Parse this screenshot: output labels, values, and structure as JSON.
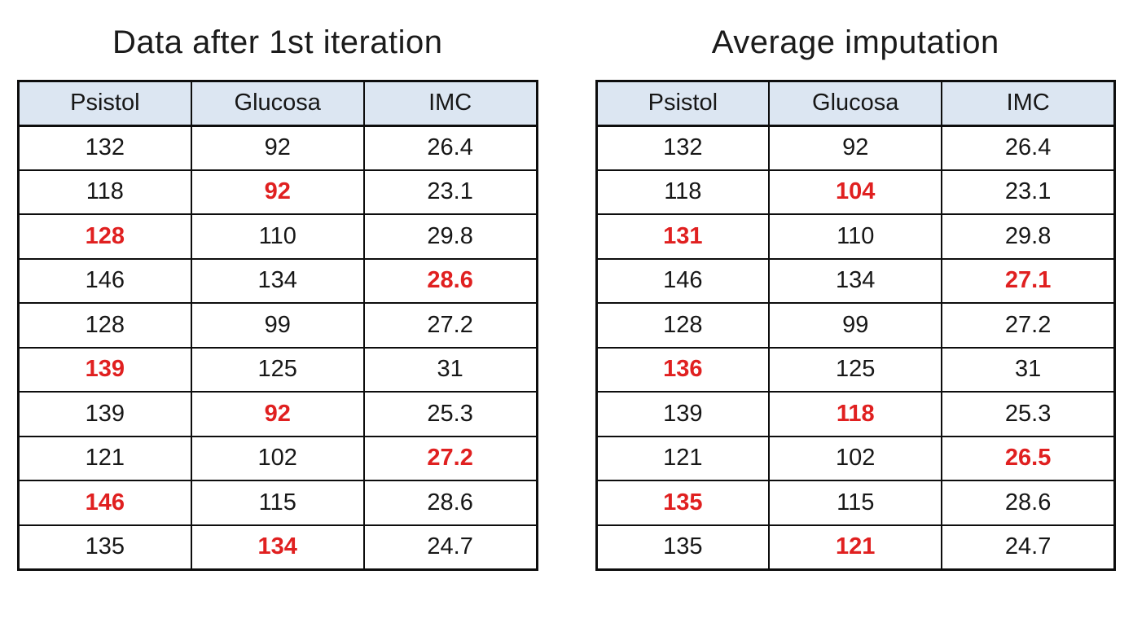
{
  "colors": {
    "header_bg": "#dce6f2",
    "imputed": "#e02020",
    "border": "#0d0d0d",
    "text": "#171717",
    "page_bg": "#ffffff"
  },
  "tables": [
    {
      "title": "Data after 1st iteration",
      "columns": [
        "Psistol",
        "Glucosa",
        "IMC"
      ],
      "rows": [
        [
          {
            "v": "132",
            "red": false
          },
          {
            "v": "92",
            "red": false
          },
          {
            "v": "26.4",
            "red": false
          }
        ],
        [
          {
            "v": "118",
            "red": false
          },
          {
            "v": "92",
            "red": true
          },
          {
            "v": "23.1",
            "red": false
          }
        ],
        [
          {
            "v": "128",
            "red": true
          },
          {
            "v": "110",
            "red": false
          },
          {
            "v": "29.8",
            "red": false
          }
        ],
        [
          {
            "v": "146",
            "red": false
          },
          {
            "v": "134",
            "red": false
          },
          {
            "v": "28.6",
            "red": true
          }
        ],
        [
          {
            "v": "128",
            "red": false
          },
          {
            "v": "99",
            "red": false
          },
          {
            "v": "27.2",
            "red": false
          }
        ],
        [
          {
            "v": "139",
            "red": true
          },
          {
            "v": "125",
            "red": false
          },
          {
            "v": "31",
            "red": false
          }
        ],
        [
          {
            "v": "139",
            "red": false
          },
          {
            "v": "92",
            "red": true
          },
          {
            "v": "25.3",
            "red": false
          }
        ],
        [
          {
            "v": "121",
            "red": false
          },
          {
            "v": "102",
            "red": false
          },
          {
            "v": "27.2",
            "red": true
          }
        ],
        [
          {
            "v": "146",
            "red": true
          },
          {
            "v": "115",
            "red": false
          },
          {
            "v": "28.6",
            "red": false
          }
        ],
        [
          {
            "v": "135",
            "red": false
          },
          {
            "v": "134",
            "red": true
          },
          {
            "v": "24.7",
            "red": false
          }
        ]
      ]
    },
    {
      "title": "Average imputation",
      "columns": [
        "Psistol",
        "Glucosa",
        "IMC"
      ],
      "rows": [
        [
          {
            "v": "132",
            "red": false
          },
          {
            "v": "92",
            "red": false
          },
          {
            "v": "26.4",
            "red": false
          }
        ],
        [
          {
            "v": "118",
            "red": false
          },
          {
            "v": "104",
            "red": true
          },
          {
            "v": "23.1",
            "red": false
          }
        ],
        [
          {
            "v": "131",
            "red": true
          },
          {
            "v": "110",
            "red": false
          },
          {
            "v": "29.8",
            "red": false
          }
        ],
        [
          {
            "v": "146",
            "red": false
          },
          {
            "v": "134",
            "red": false
          },
          {
            "v": "27.1",
            "red": true
          }
        ],
        [
          {
            "v": "128",
            "red": false
          },
          {
            "v": "99",
            "red": false
          },
          {
            "v": "27.2",
            "red": false
          }
        ],
        [
          {
            "v": "136",
            "red": true
          },
          {
            "v": "125",
            "red": false
          },
          {
            "v": "31",
            "red": false
          }
        ],
        [
          {
            "v": "139",
            "red": false
          },
          {
            "v": "118",
            "red": true
          },
          {
            "v": "25.3",
            "red": false
          }
        ],
        [
          {
            "v": "121",
            "red": false
          },
          {
            "v": "102",
            "red": false
          },
          {
            "v": "26.5",
            "red": true
          }
        ],
        [
          {
            "v": "135",
            "red": true
          },
          {
            "v": "115",
            "red": false
          },
          {
            "v": "28.6",
            "red": false
          }
        ],
        [
          {
            "v": "135",
            "red": false
          },
          {
            "v": "121",
            "red": true
          },
          {
            "v": "24.7",
            "red": false
          }
        ]
      ]
    }
  ]
}
